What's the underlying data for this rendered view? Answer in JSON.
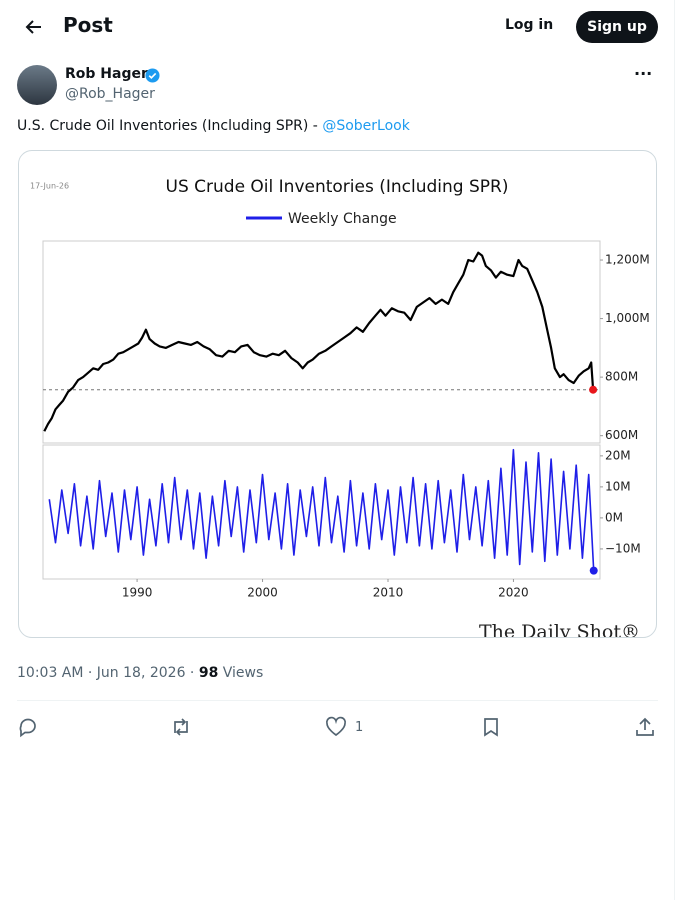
{
  "header": {
    "title": "Post",
    "login": "Log in",
    "signup": "Sign up"
  },
  "post": {
    "author": "Rob Hager",
    "handle": "@Rob_Hager",
    "text": "U.S. Crude Oil Inventories (Including SPR) - ",
    "mention": "@SoberLook",
    "timestamp": "10:03 AM · Jun 18, 2026 · ",
    "views": "98",
    "views_label": "Views",
    "likes": "1"
  },
  "chart_data": [
    {
      "type": "line",
      "title": "US Crude Oil Inventories (Including SPR)",
      "date_label": "17-Jun-26",
      "source": "The Daily Shot®",
      "xlim": [
        1982.5,
        2026.9
      ],
      "ylim": [
        575,
        1265
      ],
      "yticks": [
        {
          "value": 600,
          "label": "600M"
        },
        {
          "value": 800,
          "label": "800M"
        },
        {
          "value": 1000,
          "label": "1,000M"
        },
        {
          "value": 1200,
          "label": "1,200M"
        }
      ],
      "reference_line": 757,
      "end_marker_color": "#e8161b",
      "x": [
        1982.6,
        1982.9,
        1983.2,
        1983.5,
        1983.8,
        1984.1,
        1984.5,
        1984.9,
        1985.3,
        1985.7,
        1986.1,
        1986.5,
        1986.9,
        1987.3,
        1987.7,
        1988.1,
        1988.5,
        1988.9,
        1989.3,
        1989.7,
        1990.1,
        1990.4,
        1990.7,
        1991.0,
        1991.4,
        1991.8,
        1992.3,
        1992.8,
        1993.3,
        1993.8,
        1994.3,
        1994.8,
        1995.3,
        1995.8,
        1996.3,
        1996.8,
        1997.3,
        1997.8,
        1998.3,
        1998.8,
        1999.3,
        1999.8,
        2000.3,
        2000.8,
        2001.3,
        2001.8,
        2002.3,
        2002.8,
        2003.2,
        2003.6,
        2004.0,
        2004.5,
        2005.0,
        2005.5,
        2006.0,
        2006.5,
        2007.0,
        2007.5,
        2008.0,
        2008.5,
        2009.0,
        2009.4,
        2009.8,
        2010.3,
        2010.8,
        2011.3,
        2011.8,
        2012.3,
        2012.8,
        2013.3,
        2013.8,
        2014.3,
        2014.8,
        2015.2,
        2015.6,
        2016.0,
        2016.4,
        2016.8,
        2017.2,
        2017.5,
        2017.8,
        2018.2,
        2018.6,
        2019.0,
        2019.5,
        2020.0,
        2020.4,
        2020.7,
        2021.1,
        2021.5,
        2021.9,
        2022.3,
        2022.7,
        2023.0,
        2023.3,
        2023.7,
        2024.0,
        2024.4,
        2024.8,
        2025.2,
        2025.6,
        2026.0,
        2026.2,
        2026.35
      ],
      "series": [
        {
          "color": "#000000",
          "values": [
            615,
            640,
            660,
            690,
            705,
            720,
            750,
            765,
            790,
            800,
            815,
            830,
            825,
            845,
            850,
            860,
            880,
            885,
            895,
            905,
            915,
            935,
            962,
            930,
            915,
            905,
            900,
            910,
            920,
            915,
            910,
            920,
            905,
            895,
            875,
            870,
            890,
            885,
            905,
            910,
            885,
            875,
            870,
            880,
            875,
            890,
            865,
            850,
            830,
            850,
            860,
            880,
            890,
            905,
            920,
            935,
            950,
            970,
            955,
            985,
            1010,
            1030,
            1010,
            1035,
            1025,
            1020,
            995,
            1040,
            1055,
            1070,
            1050,
            1065,
            1050,
            1090,
            1120,
            1150,
            1200,
            1195,
            1225,
            1215,
            1180,
            1165,
            1140,
            1160,
            1150,
            1145,
            1200,
            1180,
            1170,
            1130,
            1090,
            1040,
            960,
            900,
            830,
            800,
            810,
            790,
            780,
            805,
            820,
            830,
            850,
            757
          ]
        }
      ]
    },
    {
      "type": "line",
      "xlim": [
        1982.5,
        2026.9
      ],
      "ylim": [
        -19.7,
        23.5
      ],
      "xticks": [
        1990,
        2000,
        2010,
        2020
      ],
      "yticks": [
        {
          "value": 20,
          "label": "20M"
        },
        {
          "value": 10,
          "label": "10M"
        },
        {
          "value": 0,
          "label": "0M"
        },
        {
          "value": -10,
          "label": "−10M"
        }
      ],
      "end_marker_color": "#1f1fe8",
      "x": [
        1983,
        1983.5,
        1984,
        1984.5,
        1985,
        1985.5,
        1986,
        1986.5,
        1987,
        1987.5,
        1988,
        1988.5,
        1989,
        1989.5,
        1990,
        1990.5,
        1991,
        1991.5,
        1992,
        1992.5,
        1993,
        1993.5,
        1994,
        1994.5,
        1995,
        1995.5,
        1996,
        1996.5,
        1997,
        1997.5,
        1998,
        1998.5,
        1999,
        1999.5,
        2000,
        2000.5,
        2001,
        2001.5,
        2002,
        2002.5,
        2003,
        2003.5,
        2004,
        2004.5,
        2005,
        2005.5,
        2006,
        2006.5,
        2007,
        2007.5,
        2008,
        2008.5,
        2009,
        2009.5,
        2010,
        2010.5,
        2011,
        2011.5,
        2012,
        2012.5,
        2013,
        2013.5,
        2014,
        2014.5,
        2015,
        2015.5,
        2016,
        2016.5,
        2017,
        2017.5,
        2018,
        2018.5,
        2019,
        2019.5,
        2020,
        2020.5,
        2021,
        2021.5,
        2022,
        2022.5,
        2023,
        2023.5,
        2024,
        2024.5,
        2025,
        2025.5,
        2026,
        2026.4
      ],
      "series": [
        {
          "name": "Weekly Change",
          "color": "#1f1fe8",
          "values": [
            6,
            -8,
            9,
            -5,
            11,
            -9,
            7,
            -10,
            12,
            -6,
            8,
            -11,
            9,
            -7,
            10,
            -12,
            6,
            -9,
            11,
            -8,
            13,
            -7,
            9,
            -10,
            8,
            -13,
            7,
            -9,
            12,
            -6,
            10,
            -11,
            9,
            -8,
            14,
            -7,
            8,
            -10,
            11,
            -12,
            9,
            -6,
            10,
            -9,
            13,
            -8,
            7,
            -11,
            12,
            -9,
            8,
            -10,
            11,
            -7,
            9,
            -12,
            10,
            -8,
            13,
            -9,
            11,
            -10,
            12,
            -8,
            9,
            -11,
            14,
            -7,
            10,
            -9,
            12,
            -13,
            16,
            -12,
            22,
            -15,
            18,
            -11,
            21,
            -14,
            19,
            -12,
            15,
            -10,
            17,
            -13,
            14,
            -17
          ]
        }
      ]
    }
  ]
}
